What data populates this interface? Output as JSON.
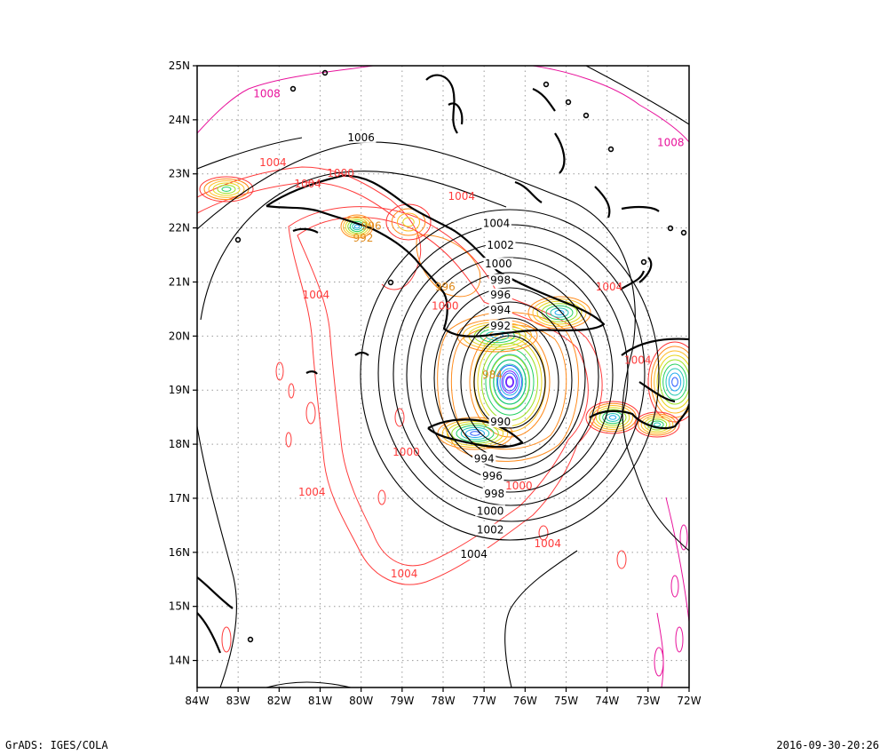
{
  "footer": {
    "left": "GrADS: IGES/COLA",
    "right": "2016-09-30-20:26"
  },
  "map": {
    "lon_range": [
      -84,
      -72
    ],
    "lat_range": [
      13.5,
      25
    ],
    "x_ticks": [
      "84W",
      "83W",
      "82W",
      "81W",
      "80W",
      "79W",
      "78W",
      "77W",
      "76W",
      "75W",
      "74W",
      "73W",
      "72W"
    ],
    "y_ticks": [
      "14N",
      "15N",
      "16N",
      "17N",
      "18N",
      "19N",
      "20N",
      "21N",
      "22N",
      "23N",
      "24N",
      "25N"
    ],
    "grid": true
  },
  "pressure_labels": {
    "black": [
      {
        "text": "1006",
        "lon": -80.0,
        "lat": 23.64
      },
      {
        "text": "1004",
        "lon": -76.7,
        "lat": 22.05
      },
      {
        "text": "1002",
        "lon": -76.6,
        "lat": 21.65
      },
      {
        "text": "1000",
        "lon": -76.65,
        "lat": 21.3
      },
      {
        "text": "998",
        "lon": -76.6,
        "lat": 21.0
      },
      {
        "text": "996",
        "lon": -76.6,
        "lat": 20.73
      },
      {
        "text": "994",
        "lon": -76.6,
        "lat": 20.45
      },
      {
        "text": "992",
        "lon": -76.6,
        "lat": 20.15
      },
      {
        "text": "990",
        "lon": -76.6,
        "lat": 18.38
      },
      {
        "text": "994",
        "lon": -77.0,
        "lat": 17.7
      },
      {
        "text": "996",
        "lon": -76.8,
        "lat": 17.38
      },
      {
        "text": "998",
        "lon": -76.75,
        "lat": 17.05
      },
      {
        "text": "1000",
        "lon": -76.85,
        "lat": 16.73
      },
      {
        "text": "1002",
        "lon": -76.85,
        "lat": 16.38
      },
      {
        "text": "1004",
        "lon": -77.25,
        "lat": 15.93
      }
    ],
    "red": [
      {
        "text": "1004",
        "lon": -82.15,
        "lat": 23.18
      },
      {
        "text": "1004",
        "lon": -81.3,
        "lat": 22.78
      },
      {
        "text": "1000",
        "lon": -80.5,
        "lat": 22.98
      },
      {
        "text": "1004",
        "lon": -77.55,
        "lat": 22.55
      },
      {
        "text": "1004",
        "lon": -81.1,
        "lat": 20.73
      },
      {
        "text": "1000",
        "lon": -77.95,
        "lat": 20.52
      },
      {
        "text": "1004",
        "lon": -73.95,
        "lat": 20.88
      },
      {
        "text": "1000",
        "lon": -78.9,
        "lat": 17.82
      },
      {
        "text": "1004",
        "lon": -81.2,
        "lat": 17.08
      },
      {
        "text": "1000",
        "lon": -76.15,
        "lat": 17.2
      },
      {
        "text": "1004",
        "lon": -75.45,
        "lat": 16.13
      },
      {
        "text": "1004",
        "lon": -78.95,
        "lat": 15.57
      },
      {
        "text": "1004",
        "lon": -73.25,
        "lat": 19.52
      }
    ],
    "magenta": [
      {
        "text": "1008",
        "lon": -82.3,
        "lat": 24.45
      },
      {
        "text": "1008",
        "lon": -72.45,
        "lat": 23.55
      }
    ],
    "orange": [
      {
        "text": "996",
        "lon": -79.75,
        "lat": 22.0
      },
      {
        "text": "992",
        "lon": -79.95,
        "lat": 21.78
      },
      {
        "text": "996",
        "lon": -77.95,
        "lat": 20.88
      },
      {
        "text": "984",
        "lon": -76.8,
        "lat": 19.25
      }
    ]
  }
}
